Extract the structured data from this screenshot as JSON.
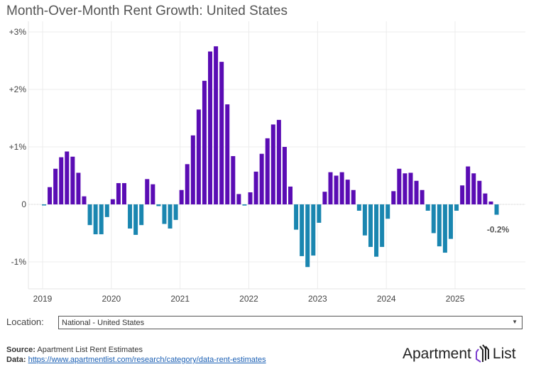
{
  "chart_data": {
    "type": "bar",
    "title": "Month-Over-Month Rent Growth: United States",
    "xlabel": "",
    "ylabel": "",
    "start": "2019-01",
    "frequency": "monthly",
    "x_tick_labels": [
      "2019",
      "2020",
      "2021",
      "2022",
      "2023",
      "2024",
      "2025"
    ],
    "y_tick_labels": [
      "+3%",
      "+2%",
      "+1%",
      "0",
      "-1%"
    ],
    "y_ticks": [
      3,
      2,
      1,
      0,
      -1
    ],
    "ylim": [
      -1.45,
      3.2
    ],
    "units": "%",
    "values": [
      -0.01,
      0.3,
      0.62,
      0.82,
      0.92,
      0.83,
      0.55,
      0.14,
      -0.36,
      -0.52,
      -0.52,
      -0.22,
      0.09,
      0.37,
      0.37,
      -0.42,
      -0.53,
      -0.36,
      0.44,
      0.35,
      -0.03,
      -0.34,
      -0.42,
      -0.27,
      0.25,
      0.7,
      1.2,
      1.65,
      2.15,
      2.66,
      2.75,
      2.48,
      1.74,
      0.84,
      0.18,
      -0.02,
      0.21,
      0.57,
      0.88,
      1.15,
      1.39,
      1.47,
      1.0,
      0.31,
      -0.44,
      -0.9,
      -1.09,
      -0.89,
      -0.32,
      0.22,
      0.56,
      0.5,
      0.56,
      0.43,
      0.25,
      -0.11,
      -0.54,
      -0.74,
      -0.91,
      -0.74,
      -0.25,
      0.23,
      0.62,
      0.54,
      0.55,
      0.41,
      0.25,
      -0.11,
      -0.5,
      -0.73,
      -0.84,
      -0.6,
      -0.11,
      0.33,
      0.66,
      0.54,
      0.41,
      0.19,
      0.05,
      -0.18
    ],
    "last_value_label": "-0.2%",
    "colors": {
      "positive": "#5a0cb4",
      "negative": "#1a86b0",
      "grid": "#ececec"
    }
  },
  "controls": {
    "location_label": "Location:",
    "location_value": "National - United States"
  },
  "footer": {
    "source_label": "Source:",
    "source_text": "Apartment List Rent Estimates",
    "data_label": "Data:",
    "data_link": "https://www.apartmentlist.com/research/category/data-rent-estimates",
    "logo_left": "Apartment",
    "logo_right": "List"
  }
}
